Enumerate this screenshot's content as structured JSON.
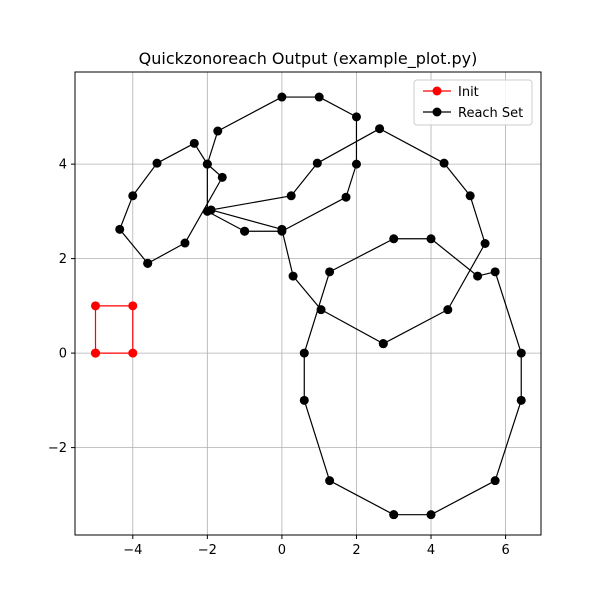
{
  "chart_data": {
    "type": "line",
    "title": "Quickzonoreach Output (example_plot.py)",
    "xlabel": "",
    "ylabel": "",
    "xlim": [
      -5.55,
      6.95
    ],
    "ylim": [
      -3.85,
      5.95
    ],
    "xticks": [
      -4,
      -2,
      0,
      2,
      4,
      6
    ],
    "yticks": [
      -2,
      0,
      2,
      4
    ],
    "xtick_labels": [
      "−4",
      "−2",
      "0",
      "2",
      "4",
      "6"
    ],
    "ytick_labels": [
      "−2",
      "0",
      "2",
      "4"
    ],
    "grid": true,
    "legend_position": "top-right",
    "series": [
      {
        "name": "Init",
        "color": "#ff0000",
        "polygons": [
          [
            [
              -5,
              0
            ],
            [
              -4,
              0
            ],
            [
              -4,
              1
            ],
            [
              -5,
              1
            ],
            [
              -5,
              0
            ]
          ]
        ]
      },
      {
        "name": "Reach Set",
        "color": "#000000",
        "polygons": [
          [
            [
              -3.6,
              1.9
            ],
            [
              -2.6,
              2.33
            ],
            [
              -1.6,
              3.72
            ],
            [
              -2.0,
              4.0
            ],
            [
              -2.35,
              4.44
            ],
            [
              -3.35,
              4.02
            ],
            [
              -4.0,
              3.33
            ],
            [
              -4.35,
              2.62
            ],
            [
              -3.6,
              1.9
            ]
          ],
          [
            [
              -1.0,
              2.58
            ],
            [
              0.0,
              2.58
            ],
            [
              1.72,
              3.3
            ],
            [
              2.0,
              4.0
            ],
            [
              2.0,
              5.0
            ],
            [
              1.0,
              5.42
            ],
            [
              0.0,
              5.42
            ],
            [
              -1.72,
              4.7
            ],
            [
              -2.0,
              4.0
            ],
            [
              -2.0,
              3.0
            ],
            [
              -1.0,
              2.58
            ]
          ],
          [
            [
              2.72,
              0.2
            ],
            [
              4.45,
              0.92
            ],
            [
              5.45,
              2.32
            ],
            [
              5.05,
              3.33
            ],
            [
              4.35,
              4.02
            ],
            [
              2.62,
              4.75
            ],
            [
              0.95,
              4.02
            ],
            [
              0.25,
              3.33
            ],
            [
              -1.9,
              3.03
            ],
            [
              0.0,
              2.62
            ],
            [
              0.3,
              1.63
            ],
            [
              1.05,
              0.92
            ],
            [
              2.72,
              0.2
            ]
          ],
          [
            [
              3.0,
              -3.42
            ],
            [
              4.0,
              -3.42
            ],
            [
              5.72,
              -2.7
            ],
            [
              6.42,
              -1.0
            ],
            [
              6.42,
              0.0
            ],
            [
              5.72,
              1.72
            ],
            [
              5.25,
              1.63
            ],
            [
              4.0,
              2.42
            ],
            [
              3.0,
              2.42
            ],
            [
              1.28,
              1.72
            ],
            [
              0.6,
              0.0
            ],
            [
              0.6,
              -1.0
            ],
            [
              1.28,
              -2.7
            ],
            [
              3.0,
              -3.42
            ]
          ]
        ]
      }
    ]
  }
}
